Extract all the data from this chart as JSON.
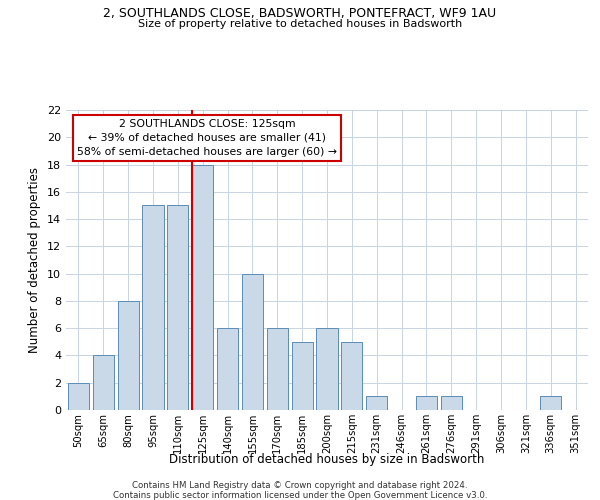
{
  "title_line1": "2, SOUTHLANDS CLOSE, BADSWORTH, PONTEFRACT, WF9 1AU",
  "title_line2": "Size of property relative to detached houses in Badsworth",
  "xlabel": "Distribution of detached houses by size in Badsworth",
  "ylabel": "Number of detached properties",
  "bin_labels": [
    "50sqm",
    "65sqm",
    "80sqm",
    "95sqm",
    "110sqm",
    "125sqm",
    "140sqm",
    "155sqm",
    "170sqm",
    "185sqm",
    "200sqm",
    "215sqm",
    "231sqm",
    "246sqm",
    "261sqm",
    "276sqm",
    "291sqm",
    "306sqm",
    "321sqm",
    "336sqm",
    "351sqm"
  ],
  "bar_values": [
    2,
    4,
    8,
    15,
    15,
    18,
    6,
    10,
    6,
    5,
    6,
    5,
    1,
    0,
    1,
    1,
    0,
    0,
    0,
    1,
    0
  ],
  "bar_color": "#c9d9e8",
  "bar_edge_color": "#5b8db8",
  "vline_color": "#cc0000",
  "annotation_text": "2 SOUTHLANDS CLOSE: 125sqm\n← 39% of detached houses are smaller (41)\n58% of semi-detached houses are larger (60) →",
  "annotation_box_color": "#ffffff",
  "annotation_box_edge_color": "#cc0000",
  "ylim": [
    0,
    22
  ],
  "yticks": [
    0,
    2,
    4,
    6,
    8,
    10,
    12,
    14,
    16,
    18,
    20,
    22
  ],
  "footer_line1": "Contains HM Land Registry data © Crown copyright and database right 2024.",
  "footer_line2": "Contains public sector information licensed under the Open Government Licence v3.0.",
  "bg_color": "#ffffff",
  "grid_color": "#c8d4e0"
}
